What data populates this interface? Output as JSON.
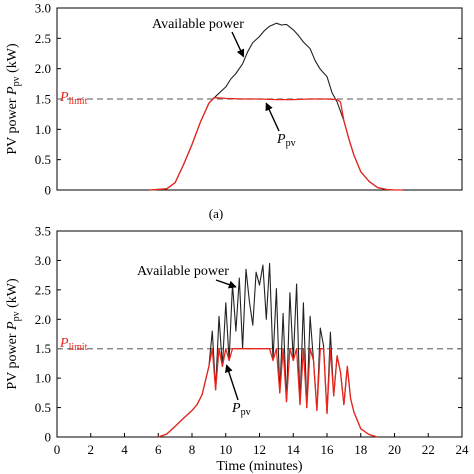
{
  "chart_data": [
    {
      "type": "line",
      "panel_label": "(a)",
      "title": "",
      "xlabel": "",
      "ylabel_main": "PV power ",
      "ylabel_sym": "P",
      "ylabel_sub": "pv",
      "ylabel_unit": " (kW)",
      "xlim": [
        0,
        24
      ],
      "ylim": [
        0,
        3.0
      ],
      "yticks": [
        0,
        0.5,
        1.0,
        1.5,
        2.0,
        2.5,
        3.0
      ],
      "ytick_labels": [
        "0",
        "0.5",
        "1.0",
        "1.5",
        "2.0",
        "2.5",
        "3.0"
      ],
      "grid": false,
      "plimit": 1.5,
      "plimit_sym": "P",
      "plimit_sub": "limit",
      "series": [
        {
          "id": "available",
          "color": "#222222",
          "x": [
            5.5,
            6.5,
            7.0,
            7.5,
            8.0,
            8.5,
            9.0,
            9.5,
            10.0,
            10.3,
            10.6,
            11.0,
            11.3,
            11.6,
            12.0,
            12.3,
            12.6,
            13.0,
            13.3,
            13.6,
            14.0,
            14.3,
            14.6,
            15.0,
            15.3,
            15.6,
            16.0,
            16.3,
            16.6,
            17.0,
            17.3,
            17.6,
            18.0,
            18.5,
            19.0,
            19.5,
            20.0,
            20.5
          ],
          "y": [
            0,
            0.02,
            0.12,
            0.42,
            0.75,
            1.12,
            1.43,
            1.57,
            1.7,
            1.83,
            1.92,
            2.08,
            2.28,
            2.43,
            2.53,
            2.63,
            2.7,
            2.75,
            2.72,
            2.73,
            2.64,
            2.55,
            2.44,
            2.33,
            2.13,
            1.99,
            1.87,
            1.6,
            1.45,
            1.14,
            0.84,
            0.57,
            0.3,
            0.14,
            0.04,
            0.01,
            0,
            0
          ]
        },
        {
          "id": "ppv",
          "color": "#e8261d",
          "x": [
            5.5,
            6.5,
            7.0,
            7.5,
            8.0,
            8.5,
            9.0,
            9.3,
            9.5,
            10.0,
            11.0,
            12.0,
            13.0,
            14.0,
            15.0,
            16.0,
            16.6,
            16.8,
            17.0,
            17.3,
            17.6,
            18.0,
            18.5,
            19.0,
            19.5,
            20.0,
            20.5
          ],
          "y": [
            0,
            0.02,
            0.12,
            0.42,
            0.75,
            1.12,
            1.43,
            1.52,
            1.52,
            1.51,
            1.5,
            1.5,
            1.49,
            1.49,
            1.5,
            1.5,
            1.49,
            1.45,
            1.14,
            0.84,
            0.57,
            0.3,
            0.14,
            0.04,
            0.01,
            0,
            0
          ]
        }
      ],
      "annotations": [
        {
          "label": "Available power",
          "sym": "",
          "sub": "",
          "color": "#000000",
          "target": [
            11.05,
            2.2
          ]
        },
        {
          "label": "",
          "sym": "P",
          "sub": "pv",
          "color": "#000000",
          "target": [
            12.4,
            1.43
          ]
        }
      ]
    },
    {
      "type": "line",
      "panel_label": "",
      "title": "",
      "xlabel": "Time (minutes)",
      "ylabel_main": "PV power ",
      "ylabel_sym": "P",
      "ylabel_sub": "pv",
      "ylabel_unit": " (kW)",
      "xlim": [
        0,
        24
      ],
      "ylim": [
        0,
        3.5
      ],
      "xticks": [
        0,
        2,
        4,
        6,
        8,
        10,
        12,
        14,
        16,
        18,
        20,
        22,
        24
      ],
      "xtick_labels": [
        "0",
        "2",
        "4",
        "6",
        "8",
        "10",
        "12",
        "14",
        "16",
        "18",
        "20",
        "22",
        "24"
      ],
      "yticks": [
        0,
        0.5,
        1.0,
        1.5,
        2.0,
        2.5,
        3.0,
        3.5
      ],
      "ytick_labels": [
        "0",
        "0.5",
        "1.0",
        "1.5",
        "2.0",
        "2.5",
        "3.0",
        "3.5"
      ],
      "grid": false,
      "plimit": 1.5,
      "plimit_sym": "P",
      "plimit_sub": "limit",
      "series": [
        {
          "id": "available",
          "color": "#222222",
          "x": [
            6.0,
            6.5,
            7.0,
            7.5,
            8.0,
            8.3,
            8.6,
            9.0,
            9.2,
            9.4,
            9.6,
            9.8,
            10.0,
            10.2,
            10.4,
            10.6,
            10.8,
            11.0,
            11.2,
            11.4,
            11.6,
            11.8,
            12.0,
            12.2,
            12.4,
            12.6,
            12.8,
            13.0,
            13.2,
            13.4,
            13.6,
            13.8,
            14.0,
            14.2,
            14.4,
            14.6,
            14.8,
            15.0,
            15.2,
            15.4,
            15.6,
            15.8,
            16.0,
            16.2,
            16.4,
            16.6,
            16.8,
            17.0,
            17.2,
            17.4,
            17.6,
            18.0,
            18.5,
            19.0
          ],
          "y": [
            0,
            0.05,
            0.18,
            0.32,
            0.45,
            0.55,
            0.72,
            1.2,
            1.8,
            0.8,
            2.05,
            1.2,
            2.28,
            1.3,
            2.6,
            1.8,
            2.7,
            1.5,
            2.85,
            2.3,
            1.9,
            2.8,
            2.58,
            2.92,
            2.0,
            2.95,
            1.3,
            2.52,
            0.75,
            2.1,
            0.6,
            2.45,
            1.3,
            2.6,
            0.55,
            2.28,
            0.5,
            2.05,
            1.3,
            0.45,
            1.85,
            1.55,
            0.4,
            1.78,
            0.7,
            1.38,
            1.1,
            0.55,
            1.2,
            0.65,
            0.42,
            0.14,
            0.04,
            0.0
          ]
        },
        {
          "id": "ppv",
          "color": "#e8261d",
          "x": [
            6.0,
            6.5,
            7.0,
            7.5,
            8.0,
            8.3,
            8.6,
            9.0,
            9.2,
            9.4,
            9.6,
            9.8,
            10.0,
            10.2,
            10.4,
            10.6,
            10.8,
            11.0,
            11.2,
            11.4,
            11.6,
            11.8,
            12.0,
            12.2,
            12.4,
            12.6,
            12.8,
            13.0,
            13.2,
            13.4,
            13.6,
            13.8,
            14.0,
            14.2,
            14.4,
            14.6,
            14.8,
            15.0,
            15.2,
            15.4,
            15.6,
            15.8,
            16.0,
            16.2,
            16.4,
            16.6,
            16.8,
            17.0,
            17.2,
            17.4,
            17.6,
            18.0,
            18.5,
            19.0
          ],
          "y": [
            0,
            0.05,
            0.18,
            0.32,
            0.45,
            0.55,
            0.72,
            1.2,
            1.5,
            0.8,
            1.5,
            1.2,
            1.5,
            1.3,
            1.5,
            1.5,
            1.5,
            1.5,
            1.5,
            1.5,
            1.5,
            1.5,
            1.5,
            1.5,
            1.5,
            1.5,
            1.3,
            1.5,
            0.75,
            1.5,
            0.6,
            1.5,
            1.3,
            1.5,
            0.55,
            1.5,
            0.5,
            1.5,
            1.3,
            0.45,
            1.5,
            1.5,
            0.4,
            1.5,
            0.7,
            1.38,
            1.1,
            0.55,
            1.2,
            0.65,
            0.42,
            0.14,
            0.04,
            0.0
          ]
        }
      ],
      "annotations": [
        {
          "label": "Available power",
          "sym": "",
          "sub": "",
          "color": "#000000",
          "target": [
            10.6,
            2.55
          ]
        },
        {
          "label": "",
          "sym": "P",
          "sub": "pv",
          "color": "#000000",
          "target": [
            10.05,
            1.22
          ]
        }
      ]
    }
  ]
}
